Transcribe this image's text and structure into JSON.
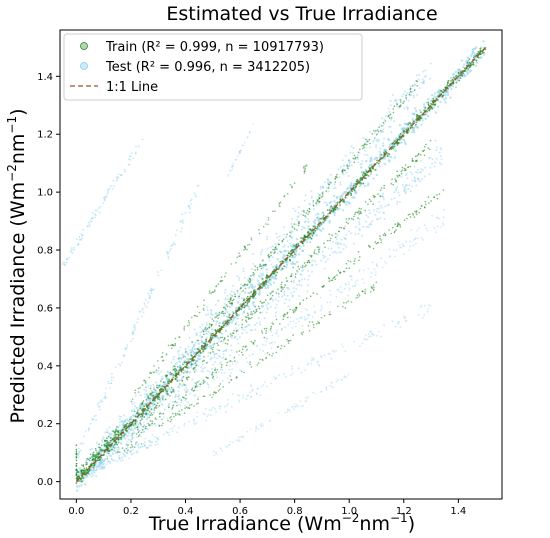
{
  "chart_data": {
    "type": "scatter",
    "title": "Estimated vs True Irradiance",
    "xlabel": {
      "base": "True Irradiance (Wm",
      "sup1": "−2",
      "mid": "nm",
      "sup2": "−1",
      "end": ")"
    },
    "ylabel": {
      "base": "Predicted Irradiance (Wm",
      "sup1": "−2",
      "mid": "nm",
      "sup2": "−1",
      "end": ")"
    },
    "xlim": [
      -0.06,
      1.56
    ],
    "ylim": [
      -0.06,
      1.56
    ],
    "x_ticks": [
      "0.0",
      "0.2",
      "0.4",
      "0.6",
      "0.8",
      "1.0",
      "1.2",
      "1.4"
    ],
    "y_ticks": [
      "0.0",
      "0.2",
      "0.4",
      "0.6",
      "0.8",
      "1.0",
      "1.2",
      "1.4"
    ],
    "x_tick_values": [
      0,
      0.2,
      0.4,
      0.6,
      0.8,
      1.0,
      1.2,
      1.4
    ],
    "y_tick_values": [
      0,
      0.2,
      0.4,
      0.6,
      0.8,
      1.0,
      1.2,
      1.4
    ],
    "grid": false,
    "legend_position": "top-left",
    "series": [
      {
        "name": "Train (R² = 0.999, n = 10917793)",
        "color": "#228b22",
        "marker": "circle"
      },
      {
        "name": "Test (R² = 0.996, n = 3412205)",
        "color": "#87ceeb",
        "marker": "circle"
      }
    ],
    "reference_line": {
      "name": "1:1 Line",
      "color": "#a0522d",
      "style": "dashed",
      "x": [
        0,
        1.5
      ],
      "y": [
        0,
        1.5
      ]
    }
  }
}
